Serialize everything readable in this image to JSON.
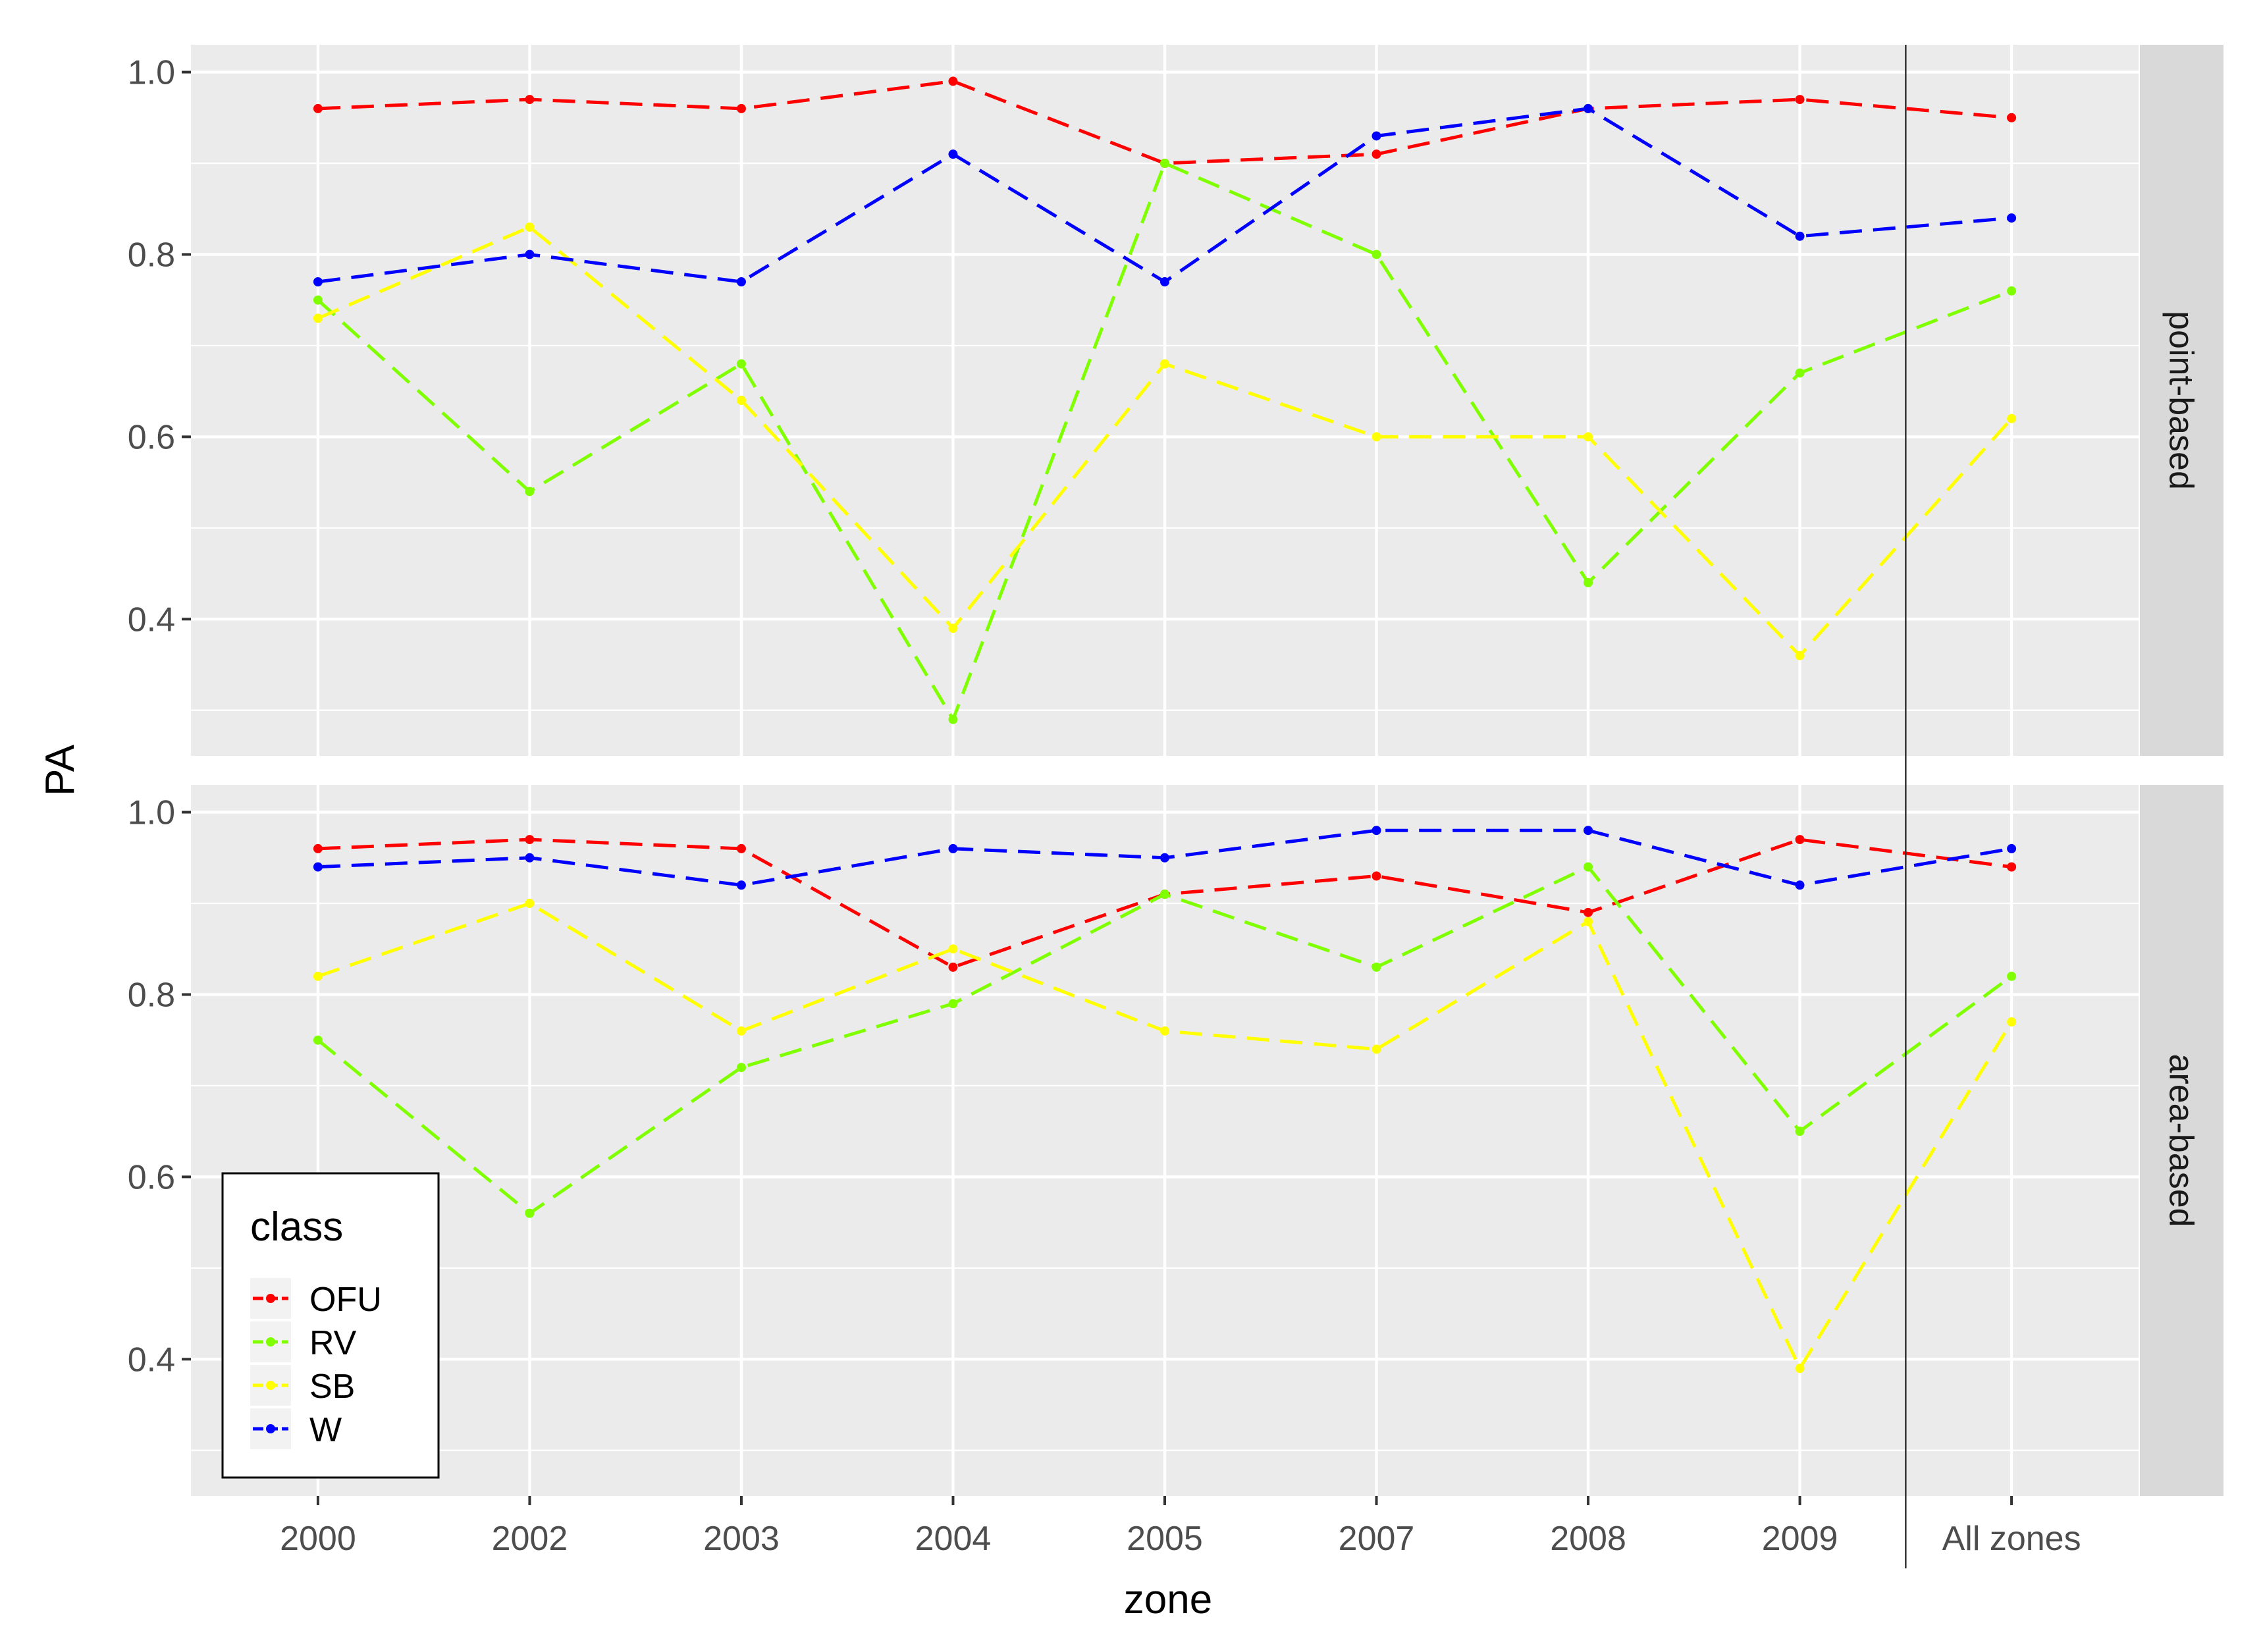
{
  "chart_data": {
    "type": "line",
    "ylabel": "PA",
    "xlabel": "zone",
    "categories": [
      "2000",
      "2002",
      "2003",
      "2004",
      "2005",
      "2007",
      "2008",
      "2009",
      "All zones"
    ],
    "ylim": [
      0.25,
      1.03
    ],
    "yticks": [
      0.4,
      0.6,
      0.8,
      1.0
    ],
    "ytick_labels": [
      "0.4",
      "0.6",
      "0.8",
      "1.0"
    ],
    "grid": true,
    "line_style": "dashed",
    "legend": {
      "title": "class",
      "placement": "bottom-left",
      "entries": [
        "OFU",
        "RV",
        "SB",
        "W"
      ]
    },
    "colors": {
      "OFU": "#ff0000",
      "RV": "#7fff00",
      "SB": "#ffff00",
      "W": "#0000ff",
      "panel_bg": "#ebebeb",
      "strip_bg": "#d9d9d9"
    },
    "panels": [
      {
        "strip": "point-based",
        "series": [
          {
            "name": "OFU",
            "values": [
              0.96,
              0.97,
              0.96,
              0.99,
              0.9,
              0.91,
              0.96,
              0.97,
              0.95
            ]
          },
          {
            "name": "RV",
            "values": [
              0.75,
              0.54,
              0.68,
              0.29,
              0.9,
              0.8,
              0.44,
              0.67,
              0.76
            ]
          },
          {
            "name": "SB",
            "values": [
              0.73,
              0.83,
              0.64,
              0.39,
              0.68,
              0.6,
              0.6,
              0.36,
              0.62
            ]
          },
          {
            "name": "W",
            "values": [
              0.77,
              0.8,
              0.77,
              0.91,
              0.77,
              0.93,
              0.96,
              0.82,
              0.84
            ]
          }
        ]
      },
      {
        "strip": "area-based",
        "series": [
          {
            "name": "OFU",
            "values": [
              0.96,
              0.97,
              0.96,
              0.83,
              0.91,
              0.93,
              0.89,
              0.97,
              0.94
            ]
          },
          {
            "name": "RV",
            "values": [
              0.75,
              0.56,
              0.72,
              0.79,
              0.91,
              0.83,
              0.94,
              0.65,
              0.82
            ]
          },
          {
            "name": "SB",
            "values": [
              0.82,
              0.9,
              0.76,
              0.85,
              0.76,
              0.74,
              0.88,
              0.39,
              0.77
            ]
          },
          {
            "name": "W",
            "values": [
              0.94,
              0.95,
              0.92,
              0.96,
              0.95,
              0.98,
              0.98,
              0.92,
              0.96
            ]
          }
        ]
      }
    ]
  }
}
